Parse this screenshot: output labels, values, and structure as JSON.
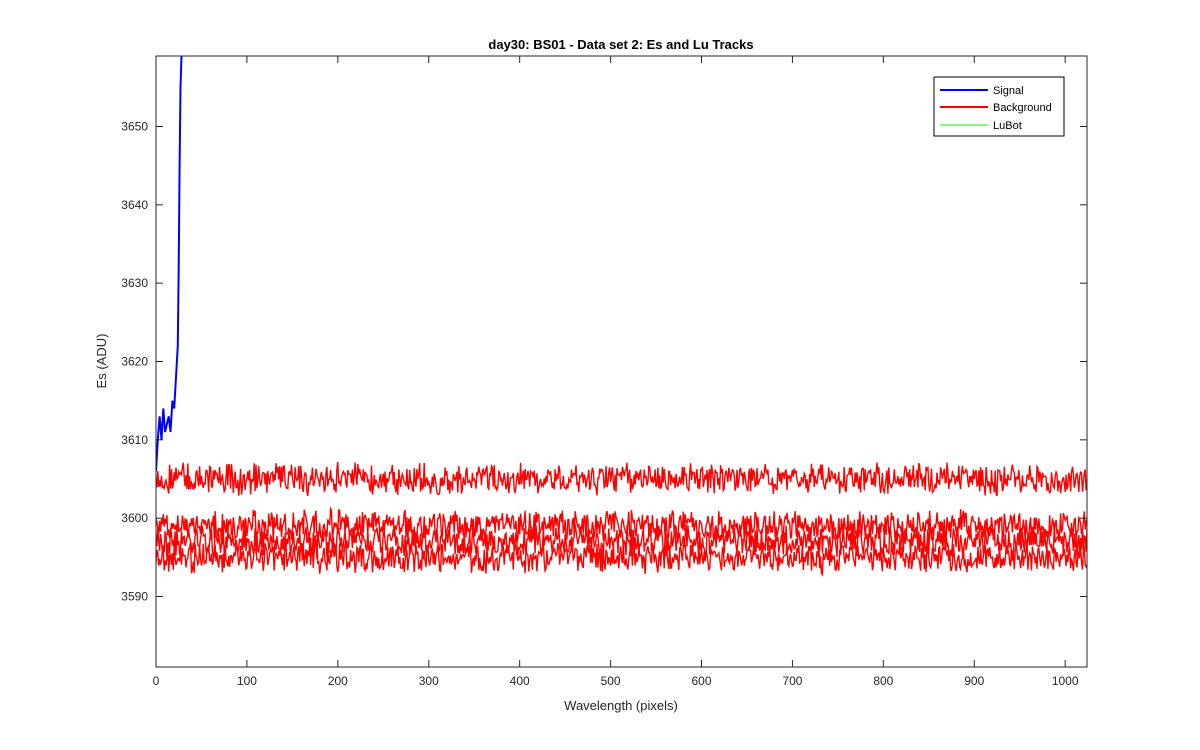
{
  "chart_data": {
    "type": "line",
    "title": "day30: BS01 - Data set 2: Es and Lu Tracks",
    "xlabel": "Wavelength (pixels)",
    "ylabel": "Es (ADU)",
    "xlim": [
      0,
      1024
    ],
    "ylim": [
      3581,
      3659
    ],
    "x_ticks": [
      0,
      100,
      200,
      300,
      400,
      500,
      600,
      700,
      800,
      900,
      1000
    ],
    "y_ticks": [
      3590,
      3600,
      3610,
      3620,
      3630,
      3640,
      3650
    ],
    "grid": false,
    "legend_position": "top-right",
    "series": [
      {
        "name": "Signal",
        "color": "#0000ff",
        "x": [
          0,
          2,
          4,
          6,
          8,
          10,
          12,
          14,
          16,
          18,
          20,
          22,
          24,
          25,
          26,
          27,
          28
        ],
        "y": [
          3606,
          3610,
          3613,
          3610,
          3614,
          3611,
          3612,
          3613,
          3611,
          3615,
          3614,
          3618,
          3622,
          3632,
          3645,
          3655,
          3659
        ]
      },
      {
        "name": "Background",
        "color": "#ff0000",
        "tracks": [
          {
            "mean": 3605,
            "amplitude": 1.6,
            "x": [
              0,
              1024
            ],
            "y": [
              3605,
              3605
            ]
          },
          {
            "mean": 3599,
            "amplitude": 1.6,
            "x": [
              0,
              1024
            ],
            "y": [
              3599,
              3599
            ]
          },
          {
            "mean": 3597,
            "amplitude": 1.6,
            "x": [
              0,
              1024
            ],
            "y": [
              3597,
              3597
            ]
          },
          {
            "mean": 3595,
            "amplitude": 1.6,
            "x": [
              0,
              1024
            ],
            "y": [
              3595,
              3595
            ]
          }
        ]
      },
      {
        "name": "LuBot",
        "color": "#00ff00",
        "x": [],
        "y": []
      }
    ]
  }
}
